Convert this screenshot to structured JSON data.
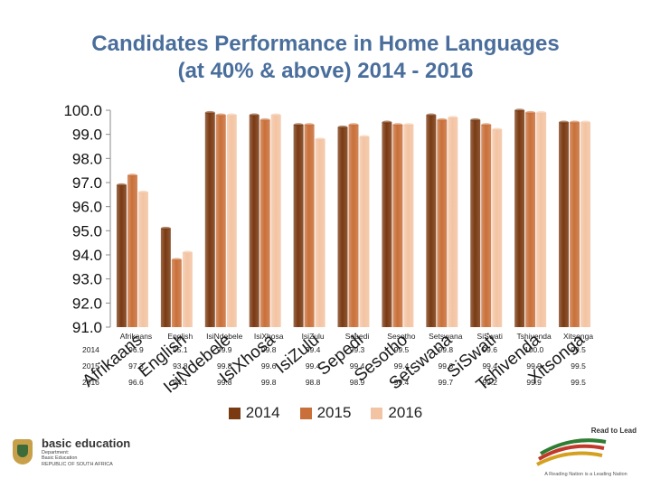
{
  "header": {
    "title_line1": "Candidates Performance in Home Languages",
    "title_line2": "(at 40% & above) 2014 - 2016"
  },
  "chart_data": {
    "type": "bar",
    "title": "Candidates Performance in Home Languages (at 40% & above) 2014 - 2016",
    "xlabel": "",
    "ylabel": "",
    "ylim": [
      91,
      100
    ],
    "ytick_labels": [
      "100.0",
      "99.0",
      "98.0",
      "97.0",
      "96.0",
      "95.0",
      "94.0",
      "93.0",
      "92.0",
      "91.0"
    ],
    "categories": [
      "Afrikaans",
      "English",
      "IsiNdebele",
      "IsiXhosa",
      "IsiZulu",
      "Sepedi",
      "Sesotho",
      "Setswana",
      "SiSwati",
      "Tshivenda",
      "Xitsonga"
    ],
    "overlay_labels": [
      "Afrikaans",
      "English",
      "IsiNdebele",
      "IsiXhosa",
      "IsiZulu",
      "Sepedi",
      "Sesotho",
      "Setswana",
      "SiSwati",
      "Tshivenda",
      "Xitsonga"
    ],
    "series": [
      {
        "name": "2014",
        "values": [
          96.9,
          95.1,
          99.9,
          99.8,
          99.4,
          99.3,
          99.5,
          99.8,
          99.6,
          100.0,
          99.5
        ],
        "color": "#7a3a12"
      },
      {
        "name": "2015",
        "values": [
          97.3,
          93.8,
          99.8,
          99.6,
          99.4,
          99.4,
          99.4,
          99.6,
          99.4,
          99.9,
          99.5
        ],
        "color": "#c9703a"
      },
      {
        "name": "2016",
        "values": [
          96.6,
          94.1,
          99.8,
          99.8,
          98.8,
          98.9,
          99.4,
          99.7,
          99.2,
          99.9,
          99.5
        ],
        "color": "#f3c4a3"
      }
    ],
    "table_labels": [
      [
        "96.9",
        "95.1",
        "99.9",
        "99.8",
        "99.4",
        "99.3",
        "99.5",
        "99.8",
        "99.6",
        "100.0",
        "99.5"
      ],
      [
        "97.3",
        "93.8",
        "99.8",
        "99.6",
        "99.4",
        "99.4",
        "99.4",
        "99.6",
        "99.4",
        "99.9",
        "99.5"
      ],
      [
        "96.6",
        "94.1",
        "99.8",
        "99.8",
        "98.8",
        "98.9",
        "99.4",
        "99.7",
        "99.2",
        "99.9",
        "99.5"
      ]
    ],
    "legend_position": "bottom",
    "grid": false
  },
  "footer": {
    "brand_name": "basic education",
    "brand_sub1": "Department:",
    "brand_sub2": "Basic Education",
    "brand_sub3": "REPUBLIC OF SOUTH AFRICA",
    "read_to_lead": "Read to Lead",
    "read_to_lead_sub": "A Reading Nation is a Leading Nation"
  }
}
